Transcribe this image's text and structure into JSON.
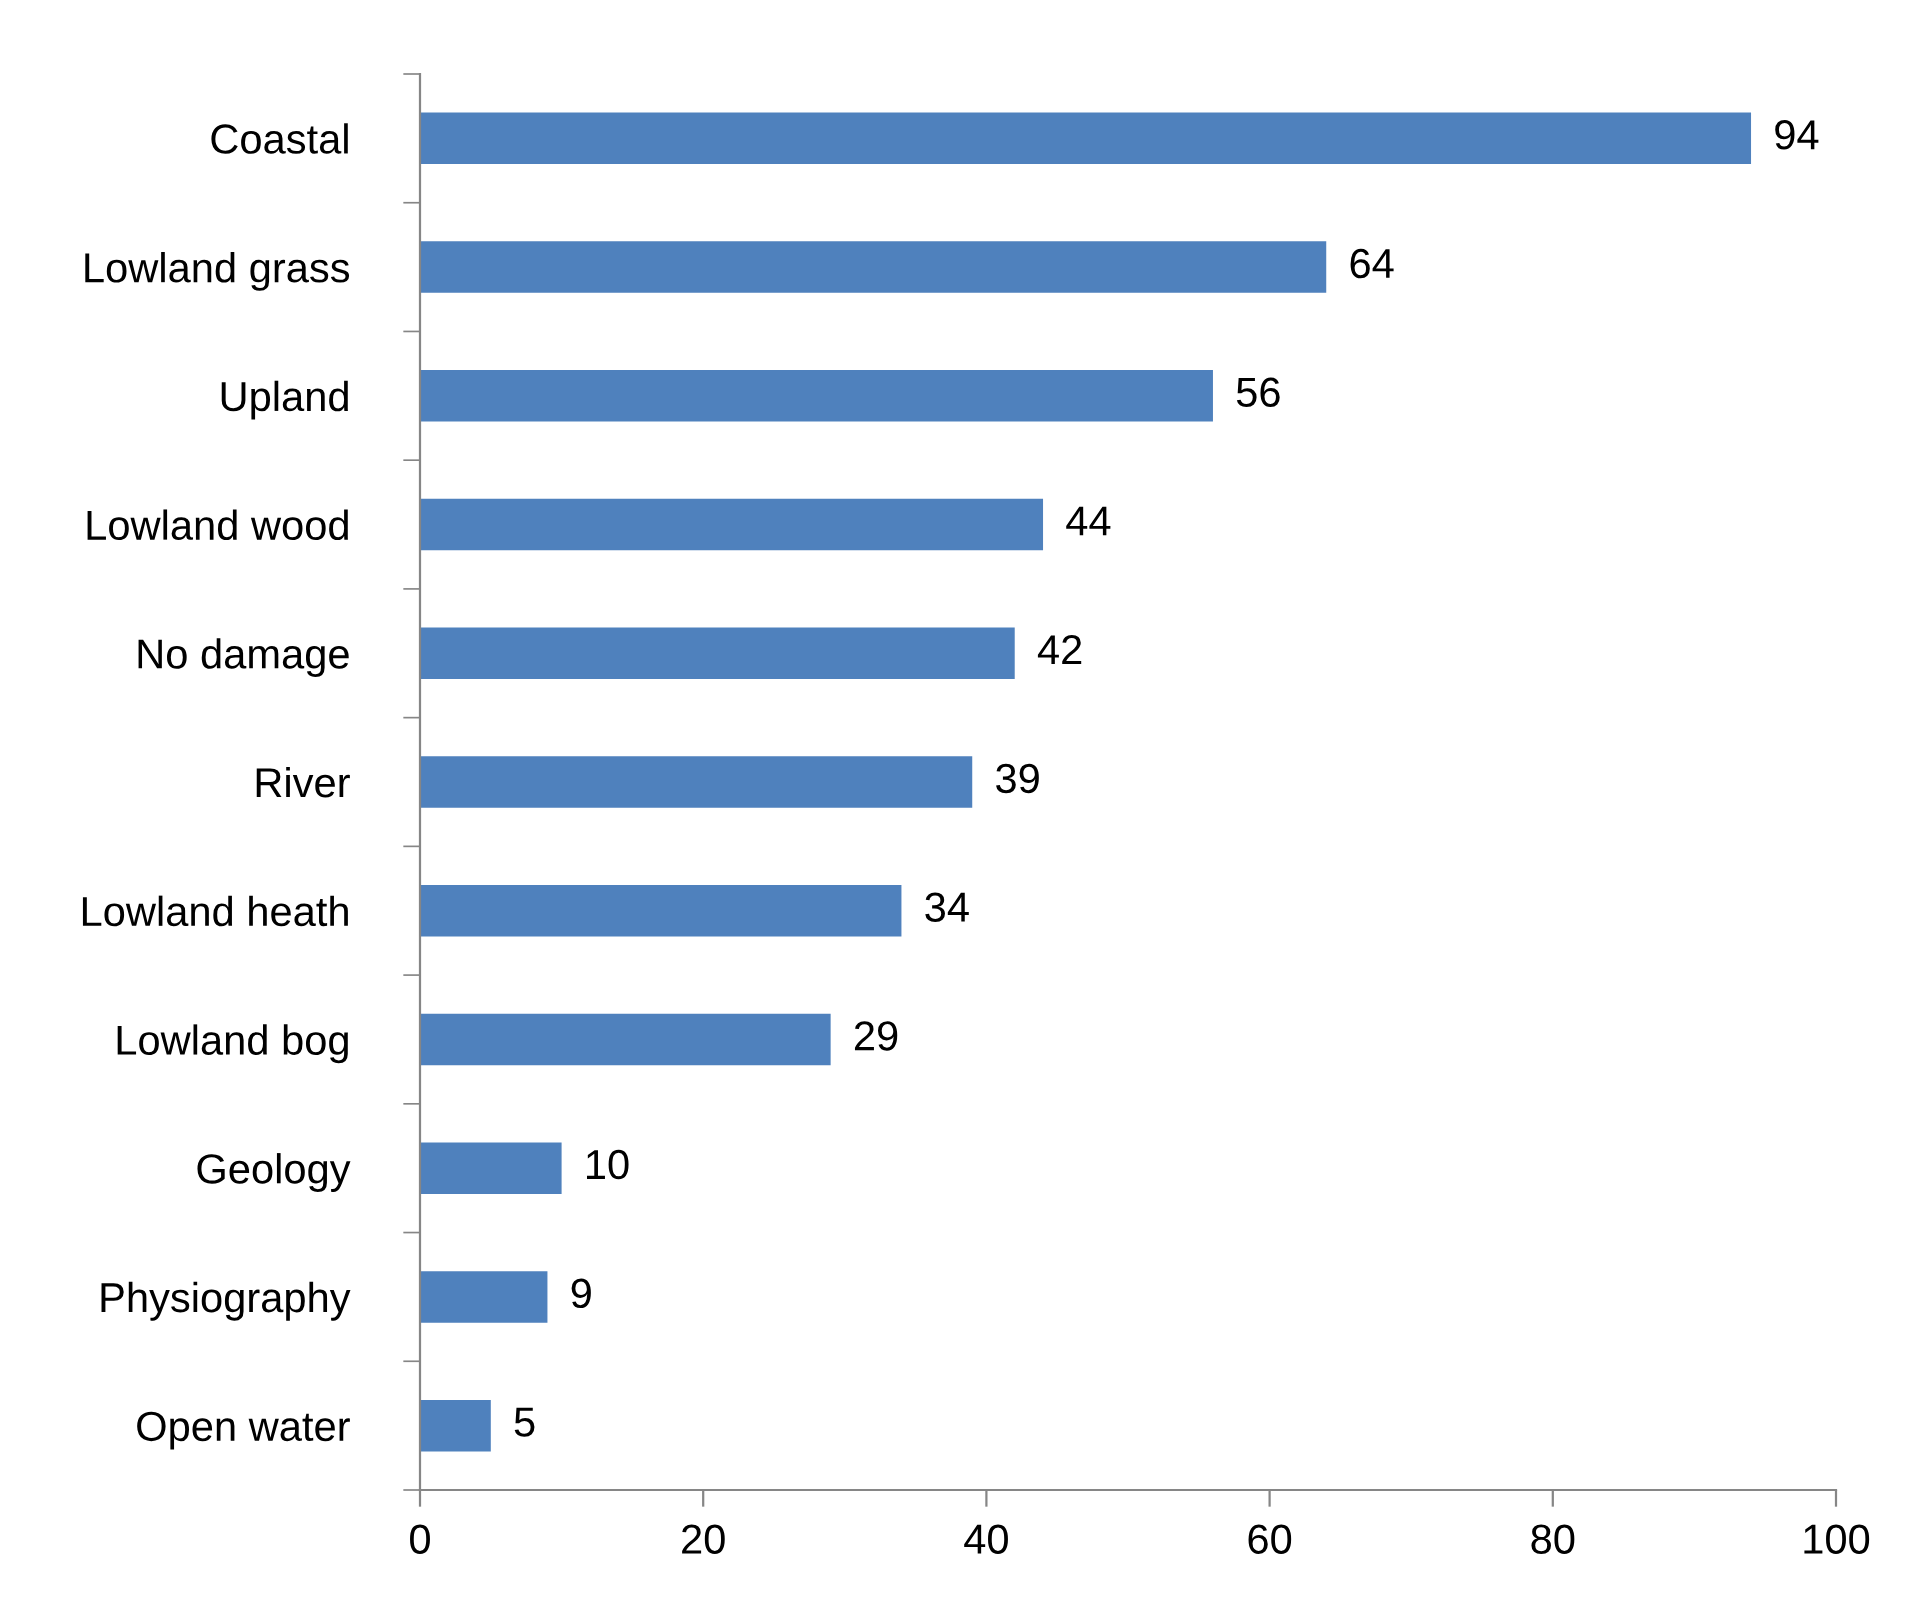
{
  "chart_data": {
    "type": "bar",
    "orientation": "horizontal",
    "categories": [
      "Coastal",
      "Lowland grass",
      "Upland",
      "Lowland wood",
      "No damage",
      "River",
      "Lowland heath",
      "Lowland bog",
      "Geology",
      "Physiography",
      "Open water"
    ],
    "values": [
      94,
      64,
      56,
      44,
      42,
      39,
      34,
      29,
      10,
      9,
      5
    ],
    "color": "#4f81bd",
    "xlim": [
      0,
      100
    ],
    "xticks": [
      0,
      20,
      40,
      60,
      80,
      100
    ],
    "data_labels": true,
    "grid": false
  }
}
